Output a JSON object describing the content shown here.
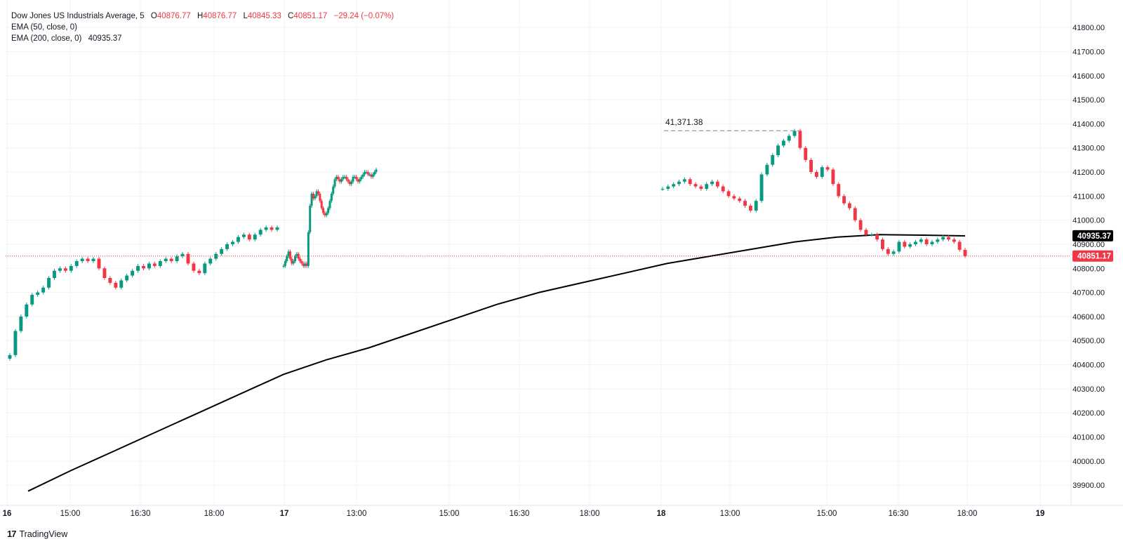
{
  "legend": {
    "symbol": "Dow Jones US Industrials Average",
    "interval": "5",
    "open_label": "O",
    "open": "40876.77",
    "high_label": "H",
    "high": "40876.77",
    "low_label": "L",
    "low": "40845.33",
    "close_label": "C",
    "close": "40851.17",
    "change": "−29.24 (−0.07%)",
    "ema50": "EMA (50, close, 0)",
    "ema200": "EMA (200, close, 0)",
    "ema200_value": "40935.37"
  },
  "brand": {
    "name": "TradingView",
    "mark": "17"
  },
  "colors": {
    "up": "#089981",
    "down": "#f23645",
    "ema": "#000000",
    "grid": "#f0f3fa",
    "last_price_line": "#f23645"
  },
  "chart_data": {
    "type": "candlestick",
    "ylim": [
      39880,
      41850
    ],
    "y_ticks": [
      39900,
      40000,
      40100,
      40200,
      40300,
      40400,
      40500,
      40600,
      40700,
      40800,
      40900,
      41000,
      41100,
      41200,
      41300,
      41400,
      41500,
      41600,
      41700,
      41800
    ],
    "x_tick_labels": [
      "16",
      "15:00",
      "16:30",
      "18:00",
      "17",
      "13:00",
      "15:00",
      "16:30",
      "18:00",
      "18",
      "13:00",
      "15:00",
      "16:30",
      "18:00",
      "19"
    ],
    "annotation": {
      "label": "41,371.38",
      "value": 41371.38
    },
    "last_price": {
      "label": "40851.17",
      "value": 40851.17
    },
    "ema200_label": {
      "label": "40935.37",
      "value": 40935.37
    },
    "sessions": [
      {
        "closes": [
          40440,
          40540,
          40600,
          40650,
          40690,
          40700,
          40720,
          40760,
          40790,
          40800,
          40790,
          40810,
          40830,
          40840,
          40830,
          40840,
          40800,
          40760,
          40740,
          40720,
          40750,
          40770,
          40790,
          40810,
          40800,
          40820,
          40810,
          40830,
          40840,
          40830,
          40850,
          40860,
          40820,
          40790,
          40780,
          40820,
          40840,
          40860,
          40880,
          40900,
          40910,
          40930,
          40940,
          40920,
          40940,
          40960,
          40970,
          40960,
          40970
        ]
      },
      {
        "closes": [
          40810,
          40830,
          40850,
          40870,
          40840,
          40820,
          40830,
          40850,
          40860,
          40840,
          40830,
          40820,
          40810,
          40820,
          40810,
          40950,
          41060,
          41110,
          41090,
          41100,
          41120,
          41110,
          41080,
          41050,
          41030,
          41020,
          41030,
          41050,
          41080,
          41110,
          41140,
          41170,
          41180,
          41170,
          41160,
          41170,
          41180,
          41180,
          41170,
          41160,
          41150,
          41160,
          41180,
          41180,
          41170,
          41160,
          41170,
          41180,
          41190,
          41200,
          41200,
          41190,
          41190,
          41180,
          41190,
          41200,
          41210
        ]
      },
      {
        "closes": [
          41130,
          41140,
          41150,
          41160,
          41170,
          41150,
          41140,
          41130,
          41150,
          41160,
          41140,
          41120,
          41100,
          41090,
          41080,
          41060,
          41040,
          41080,
          41190,
          41230,
          41270,
          41310,
          41330,
          41350,
          41371,
          41300,
          41250,
          41200,
          41180,
          41220,
          41210,
          41150,
          41100,
          41070,
          41050,
          41000,
          40960,
          40940,
          40940,
          40920,
          40880,
          40860,
          40870,
          40910,
          40890,
          40900,
          40910,
          40920,
          40900,
          40910,
          40920,
          40930,
          40920,
          40910,
          40877,
          40851
        ]
      }
    ],
    "ema200_series": [
      39875,
      39960,
      40040,
      40120,
      40200,
      40280,
      40360,
      40420,
      40470,
      40530,
      40590,
      40650,
      40700,
      40740,
      40780,
      40820,
      40850,
      40880,
      40910,
      40930,
      40940,
      40938,
      40935
    ]
  }
}
